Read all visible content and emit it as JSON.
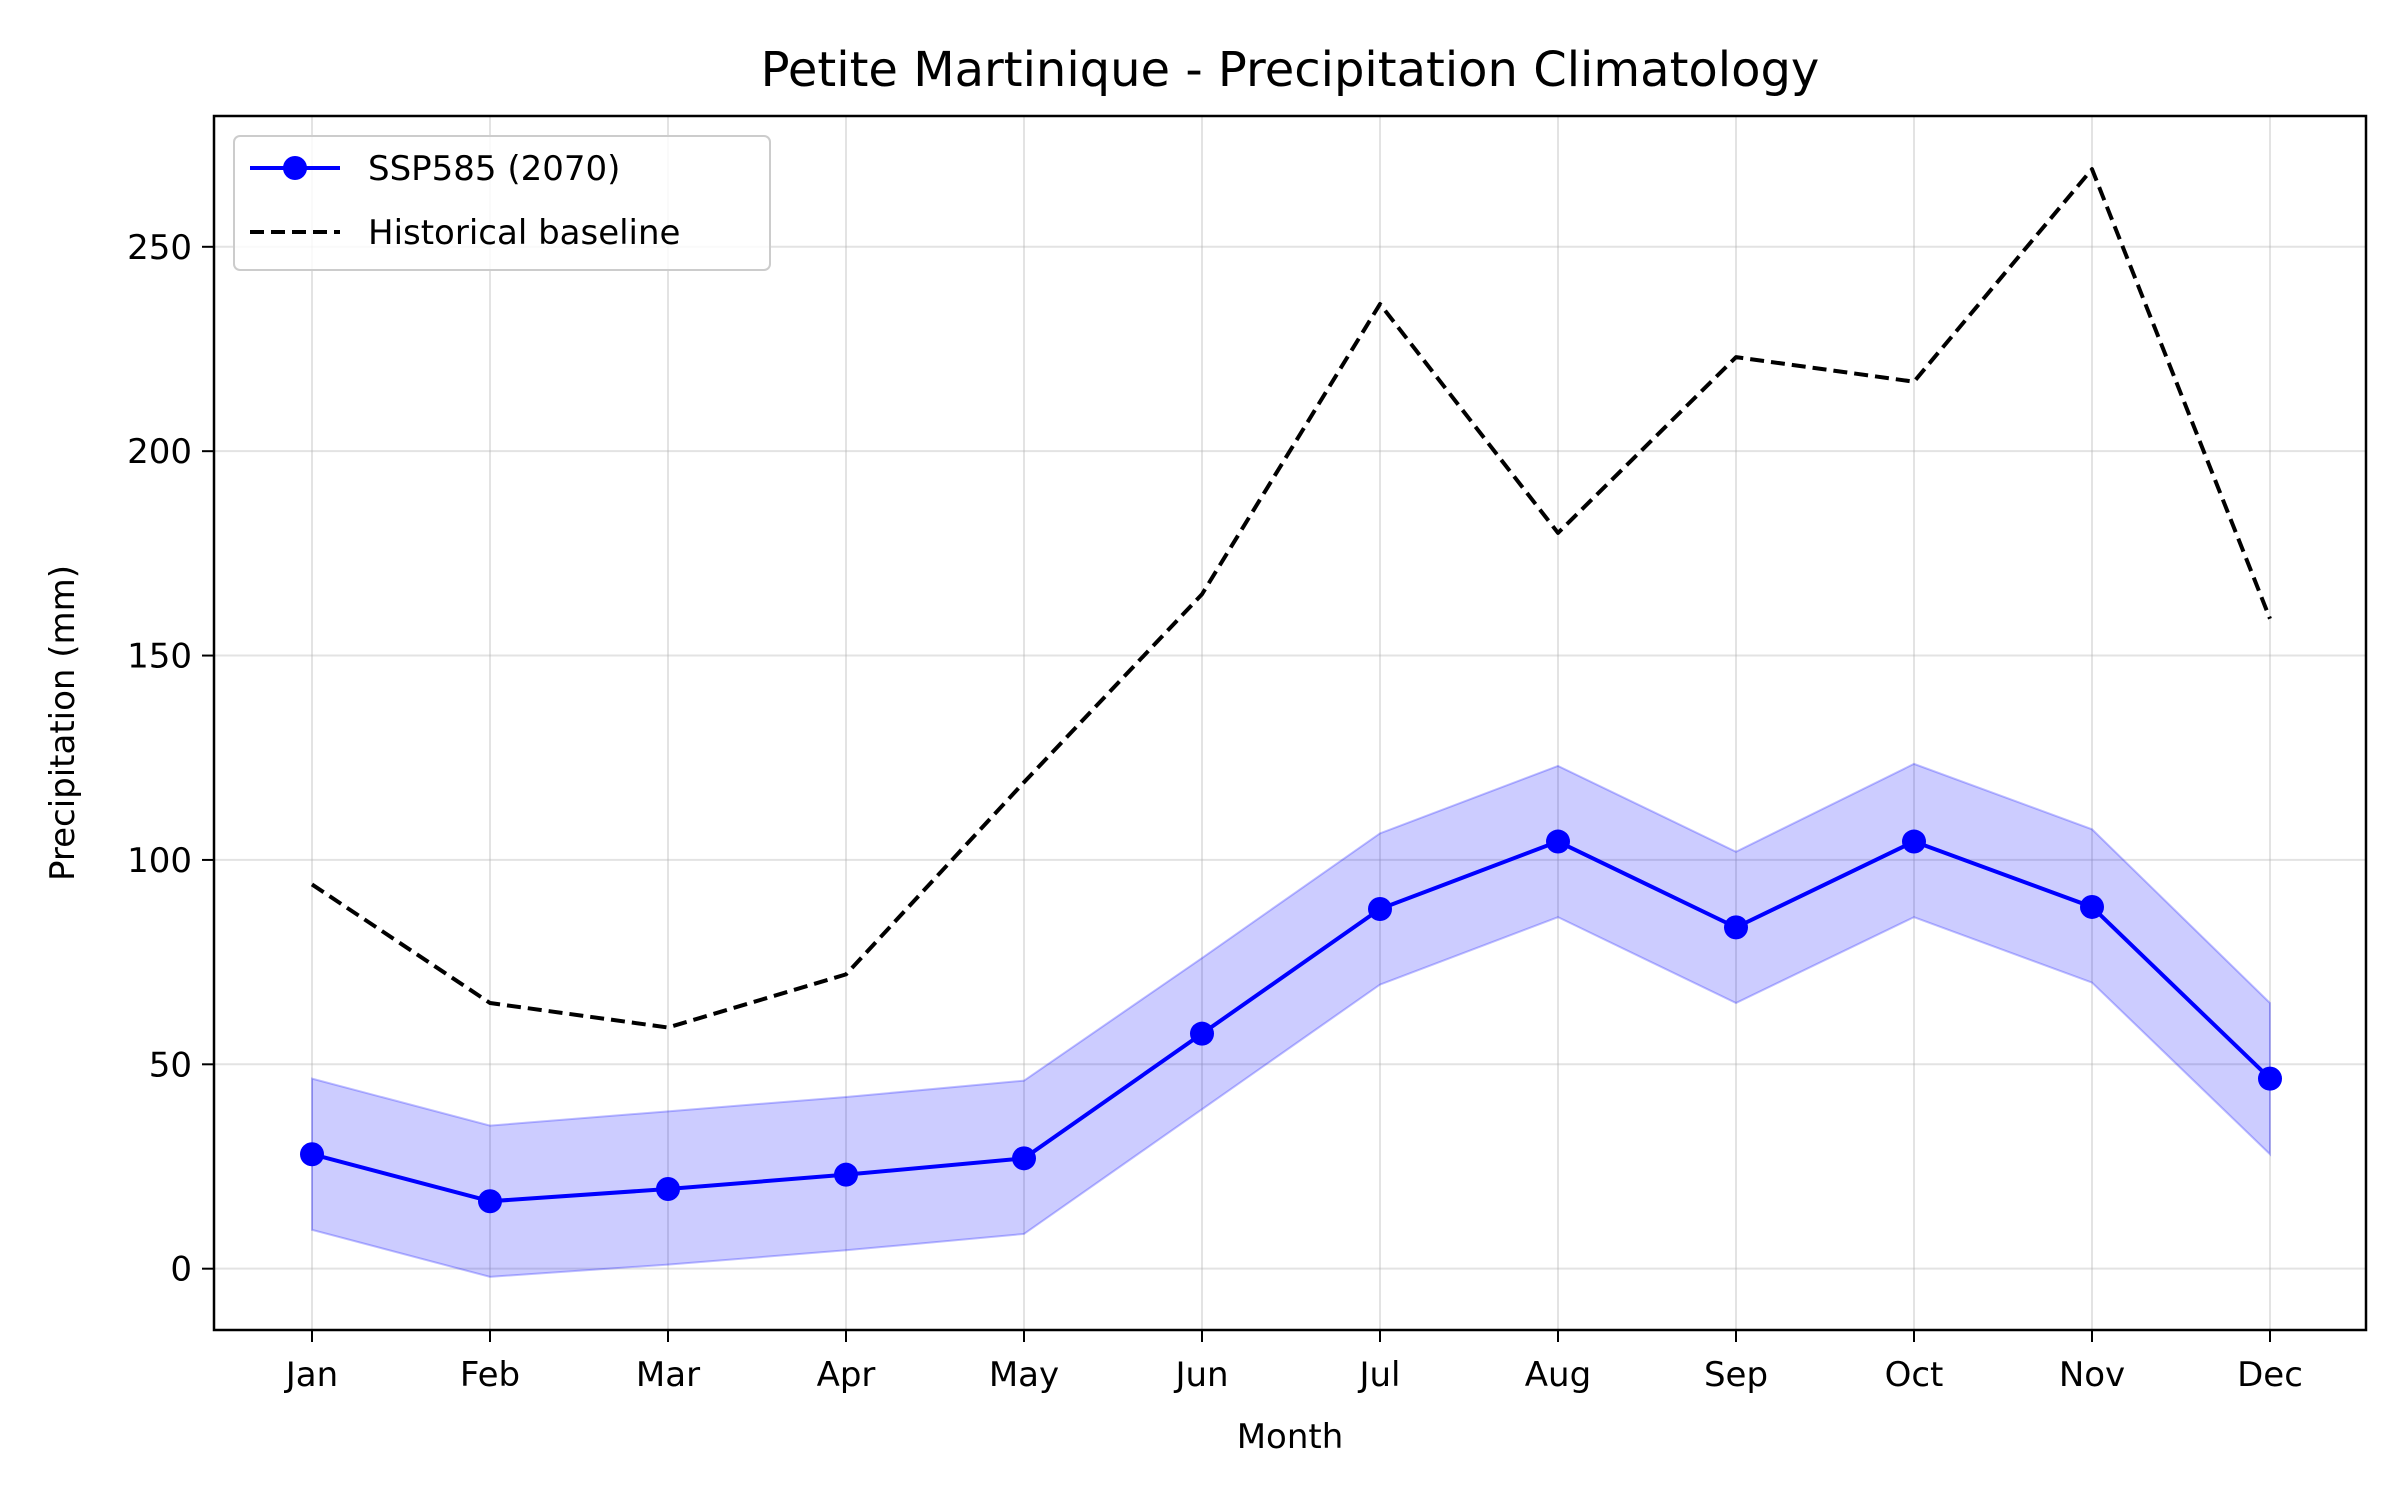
{
  "chart_data": {
    "type": "line",
    "title": "Petite Martinique - Precipitation Climatology",
    "xlabel": "Month",
    "ylabel": "Precipitation (mm)",
    "categories": [
      "Jan",
      "Feb",
      "Mar",
      "Apr",
      "May",
      "Jun",
      "Jul",
      "Aug",
      "Sep",
      "Oct",
      "Nov",
      "Dec"
    ],
    "ylim": [
      -15,
      282
    ],
    "yticks": [
      0,
      50,
      100,
      150,
      200,
      250
    ],
    "grid": true,
    "legend_position": "top-left",
    "series": [
      {
        "name": "SSP585 (2070)",
        "style": "solid-markers",
        "color": "#0000ff",
        "values": [
          28,
          16.5,
          19.5,
          23,
          27,
          57.5,
          88,
          104.5,
          83.5,
          104.5,
          88.5,
          46.5
        ],
        "band_lower": [
          9.5,
          -2,
          1,
          4.5,
          8.5,
          39,
          69.5,
          86,
          65,
          86,
          70,
          28
        ],
        "band_upper": [
          46.5,
          35,
          38.5,
          42,
          46,
          76,
          106.5,
          123,
          102,
          123.5,
          107.5,
          65
        ],
        "band_color": "#0000ff",
        "band_opacity": 0.2
      },
      {
        "name": "Historical baseline",
        "style": "dashed",
        "color": "#000000",
        "values": [
          94,
          65,
          59,
          72,
          119,
          165,
          236,
          180,
          223,
          217,
          269,
          159
        ]
      }
    ]
  }
}
